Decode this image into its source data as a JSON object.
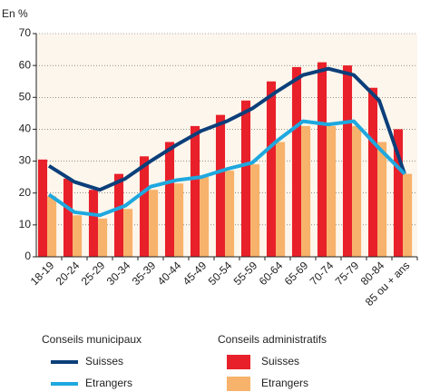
{
  "chart_data": {
    "type": "bar",
    "ylabel": "En %",
    "categories": [
      "18-19",
      "20-24",
      "25-29",
      "30-34",
      "35-39",
      "40-44",
      "45-49",
      "50-54",
      "55-59",
      "60-64",
      "65-69",
      "70-74",
      "75-79",
      "80-84",
      "85 ou + ans"
    ],
    "ylim": [
      0,
      70
    ],
    "yticks": [
      0,
      10,
      20,
      30,
      40,
      50,
      60,
      70
    ],
    "grid": true,
    "legend_titles": [
      "Conseils municipaux",
      "Conseils administratifs"
    ],
    "series": [
      {
        "name": "Suisses",
        "type": "bar",
        "color": "#e8202a",
        "values": [
          30.5,
          24.5,
          21,
          26,
          31.5,
          36,
          41,
          44.5,
          49,
          55,
          59.5,
          61,
          60,
          53,
          40
        ]
      },
      {
        "name": "Etrangers",
        "type": "bar",
        "color": "#f7b26b",
        "values": [
          19,
          13,
          12,
          15,
          21,
          23,
          25,
          27,
          29,
          36,
          41,
          41,
          41,
          36,
          26
        ]
      },
      {
        "name": "Suisses",
        "type": "line",
        "color": "#0b3f7a",
        "values": [
          28.5,
          23.5,
          21,
          24.5,
          30,
          35,
          39.5,
          42.5,
          46.5,
          52,
          57,
          59,
          57,
          49,
          26
        ]
      },
      {
        "name": "Etrangers",
        "type": "line",
        "color": "#1ea8df",
        "values": [
          19.5,
          14,
          13,
          16,
          22,
          24,
          25,
          27.5,
          29.5,
          36.5,
          42.5,
          41.5,
          42.5,
          34,
          26
        ]
      }
    ]
  }
}
